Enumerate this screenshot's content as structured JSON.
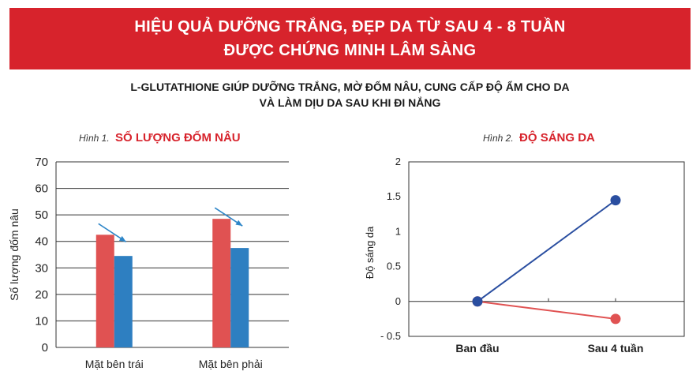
{
  "header": {
    "line1": "HIỆU QUẢ DƯỠNG TRẮNG, ĐẸP DA TỪ SAU 4 - 8 TUẦN",
    "line2": "ĐƯỢC CHỨNG MINH LÂM SÀNG"
  },
  "subheader": {
    "line1": "L-GLUTATHIONE GIÚP DƯỠNG TRẮNG, MỜ ĐỐM NÂU, CUNG CẤP ĐỘ ẨM CHO DA",
    "line2": "VÀ LÀM DỊU DA SAU KHI ĐI NẮNG"
  },
  "colors": {
    "banner": "#d7232c",
    "red": "#e05252",
    "blue": "#2e7fc1",
    "navy": "#2a4ea0",
    "arrow": "#2e86c8"
  },
  "chart_data": [
    {
      "type": "bar",
      "fig_number": "Hình 1.",
      "title": "SỐ LƯỢNG ĐỐM NÂU",
      "ylabel": "Số lượng đốm nâu",
      "xlabel": "",
      "ylim": [
        0,
        70
      ],
      "yticks": [
        "0",
        "10",
        "20",
        "30",
        "40",
        "50",
        "60",
        "70"
      ],
      "categories": [
        "Mặt bên trái",
        "Mặt bên phải"
      ],
      "series": [
        {
          "values": [
            42.5,
            48.5
          ],
          "color": "#e05252"
        },
        {
          "values": [
            34.5,
            37.5
          ],
          "color": "#2e7fc1"
        }
      ],
      "grid": true,
      "annotations": [
        "decrease-arrow",
        "decrease-arrow"
      ]
    },
    {
      "type": "line",
      "fig_number": "Hình 2.",
      "title": "ĐỘ SÁNG DA",
      "ylabel": "Độ sáng da",
      "xlabel": "",
      "ylim": [
        -0.5,
        2
      ],
      "yticks": [
        "- 0.5",
        "0",
        "0.5",
        "1",
        "1.5",
        "2"
      ],
      "categories": [
        "Ban đầu",
        "Sau 4 tuần"
      ],
      "series": [
        {
          "values": [
            0,
            1.45
          ],
          "color": "#2a4ea0"
        },
        {
          "values": [
            0,
            -0.25
          ],
          "color": "#e05252"
        }
      ],
      "grid": false
    }
  ]
}
